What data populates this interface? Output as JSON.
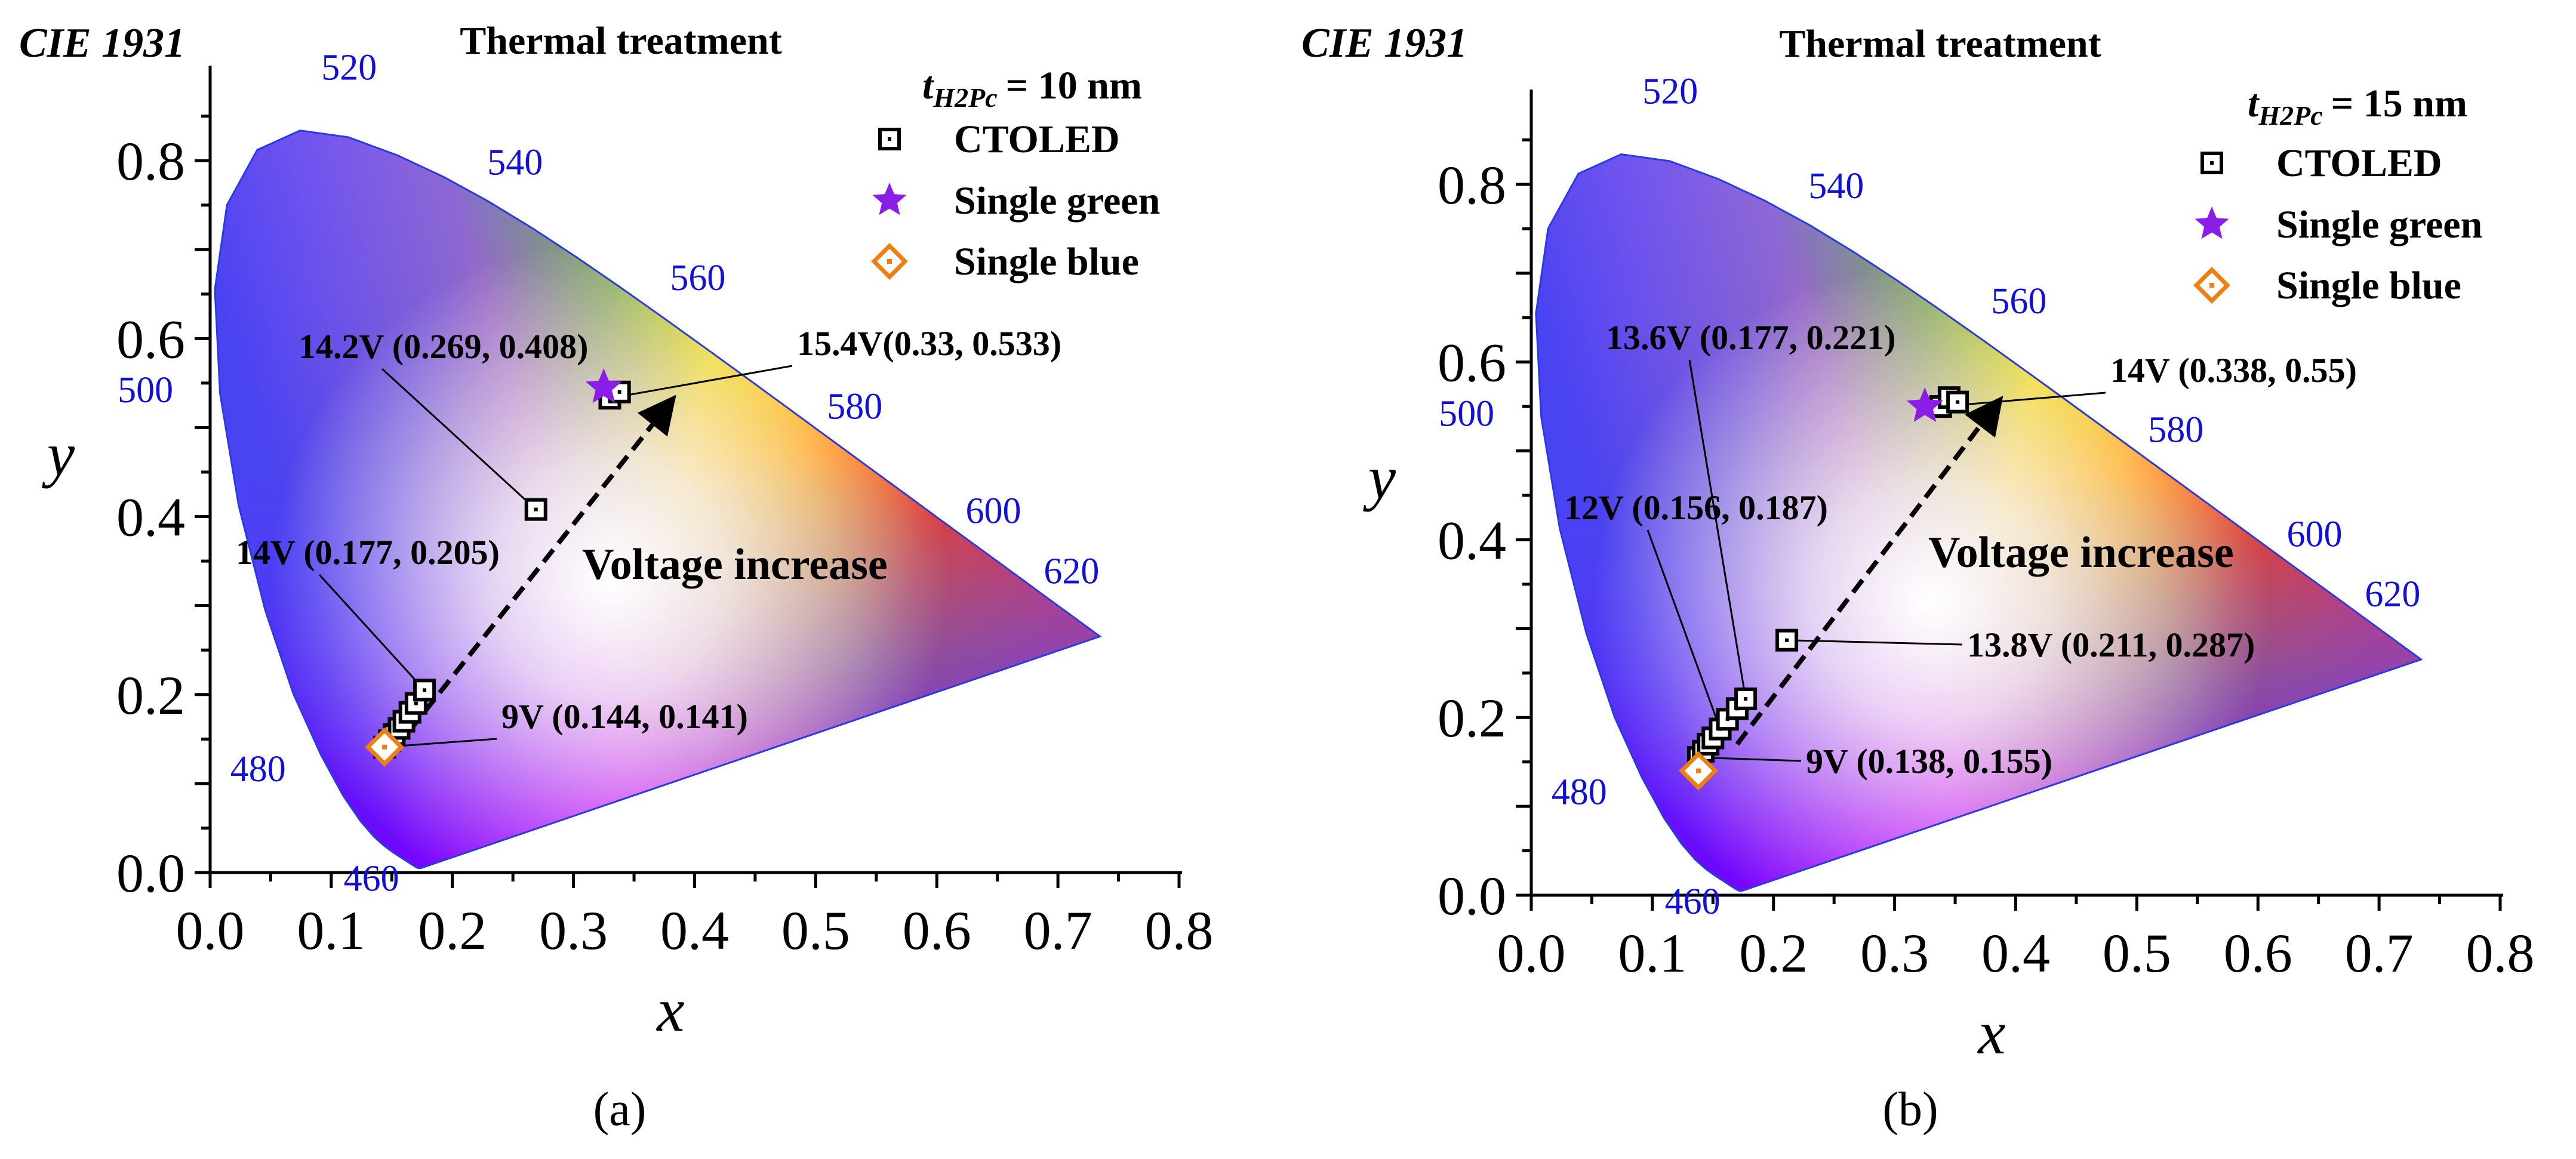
{
  "chart_data": [
    {
      "type": "scatter",
      "panel": "(a)",
      "panel_letter": "a",
      "title": "Thermal treatment",
      "diagram": "CIE 1931",
      "xlabel": "x",
      "ylabel": "y",
      "xlim": [
        0.0,
        0.8
      ],
      "ylim": [
        0.0,
        0.9
      ],
      "xticks": [
        "0.0",
        "0.1",
        "0.2",
        "0.3",
        "0.4",
        "0.5",
        "0.6",
        "0.7",
        "0.8"
      ],
      "yticks": [
        "0.0",
        "0.2",
        "0.4",
        "0.6",
        "0.8"
      ],
      "thickness": {
        "sym": "t",
        "sub": "H2Pc",
        "value": "= 10 nm"
      },
      "legend": [
        "CTOLED",
        "Single green",
        "Single blue"
      ],
      "wavelength_labels": [
        "460",
        "480",
        "500",
        "520",
        "540",
        "560",
        "580",
        "600",
        "620"
      ],
      "arrow_label": "Voltage increase",
      "series": [
        {
          "name": "CTOLED",
          "points": [
            [
              0.144,
              0.141
            ],
            [
              0.148,
              0.148
            ],
            [
              0.152,
              0.155
            ],
            [
              0.156,
              0.162
            ],
            [
              0.16,
              0.17
            ],
            [
              0.165,
              0.18
            ],
            [
              0.17,
              0.19
            ],
            [
              0.177,
              0.205
            ],
            [
              0.269,
              0.408
            ],
            [
              0.33,
              0.533
            ],
            [
              0.338,
              0.54
            ]
          ]
        },
        {
          "name": "Single green",
          "points": [
            [
              0.325,
              0.545
            ]
          ]
        },
        {
          "name": "Single blue",
          "points": [
            [
              0.144,
              0.141
            ]
          ]
        }
      ],
      "annotations": [
        {
          "text": "14.2V (0.269, 0.408)",
          "x": 0.269,
          "y": 0.408
        },
        {
          "text": "15.4V(0.33, 0.533)",
          "x": 0.33,
          "y": 0.533
        },
        {
          "text": "14V (0.177, 0.205)",
          "x": 0.177,
          "y": 0.205
        },
        {
          "text": "9V (0.144, 0.141)",
          "x": 0.144,
          "y": 0.141
        }
      ]
    },
    {
      "type": "scatter",
      "panel": "(b)",
      "panel_letter": "b",
      "title": "Thermal treatment",
      "diagram": "CIE 1931",
      "xlabel": "x",
      "ylabel": "y",
      "xlim": [
        0.0,
        0.8
      ],
      "ylim": [
        0.0,
        0.9
      ],
      "xticks": [
        "0.0",
        "0.1",
        "0.2",
        "0.3",
        "0.4",
        "0.5",
        "0.6",
        "0.7",
        "0.8"
      ],
      "yticks": [
        "0.0",
        "0.2",
        "0.4",
        "0.6",
        "0.8"
      ],
      "thickness": {
        "sym": "t",
        "sub": "H2Pc",
        "value": "= 15 nm"
      },
      "legend": [
        "CTOLED",
        "Single green",
        "Single blue"
      ],
      "wavelength_labels": [
        "460",
        "480",
        "500",
        "520",
        "540",
        "560",
        "580",
        "600",
        "620"
      ],
      "arrow_label": "Voltage increase",
      "series": [
        {
          "name": "CTOLED",
          "points": [
            [
              0.138,
              0.155
            ],
            [
              0.142,
              0.162
            ],
            [
              0.146,
              0.17
            ],
            [
              0.15,
              0.177
            ],
            [
              0.156,
              0.187
            ],
            [
              0.162,
              0.198
            ],
            [
              0.17,
              0.21
            ],
            [
              0.177,
              0.221
            ],
            [
              0.211,
              0.287
            ],
            [
              0.338,
              0.55
            ],
            [
              0.345,
              0.56
            ],
            [
              0.352,
              0.555
            ]
          ]
        },
        {
          "name": "Single green",
          "points": [
            [
              0.325,
              0.55
            ]
          ]
        },
        {
          "name": "Single blue",
          "points": [
            [
              0.138,
              0.14
            ]
          ]
        }
      ],
      "annotations": [
        {
          "text": "13.6V (0.177, 0.221)",
          "x": 0.177,
          "y": 0.221
        },
        {
          "text": "14V (0.338, 0.55)",
          "x": 0.338,
          "y": 0.55
        },
        {
          "text": "12V (0.156, 0.187)",
          "x": 0.156,
          "y": 0.187
        },
        {
          "text": "13.8V (0.211, 0.287)",
          "x": 0.211,
          "y": 0.287
        },
        {
          "text": "9V (0.138, 0.155)",
          "x": 0.138,
          "y": 0.155
        }
      ]
    }
  ],
  "colors": {
    "ctoled": "#000000",
    "single_green": "#8a1ee8",
    "single_blue": "#f07f12",
    "wavelength": "#1010d8",
    "locus_edge": "#2a3ae0"
  }
}
